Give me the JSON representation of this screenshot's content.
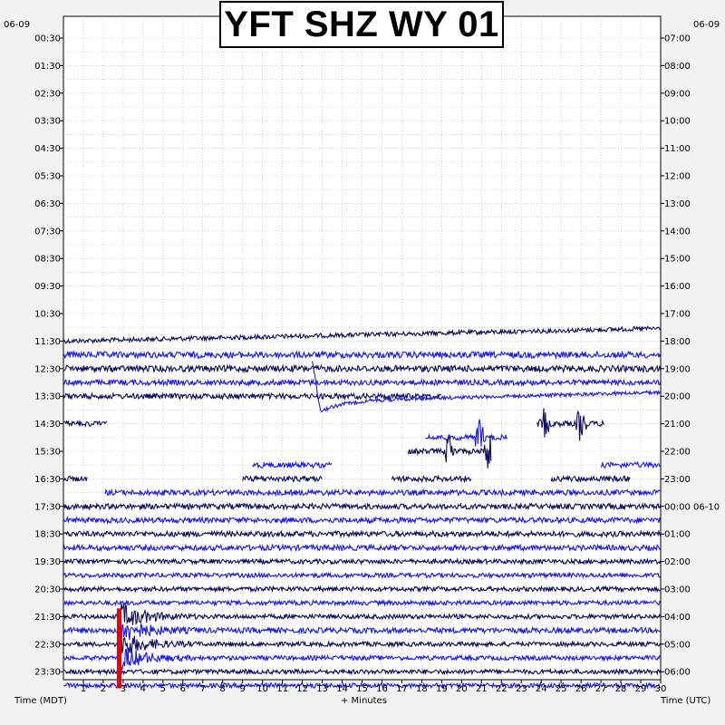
{
  "chart_data": {
    "type": "helicorder",
    "title": "YFT SHZ WY 01",
    "left_date": "06-09",
    "right_date": "06-09",
    "xlabel": "+ Minutes",
    "left_axis_label": "Time (MDT)",
    "right_axis_label": "Time (UTC)",
    "x_ticks": [
      "1",
      "2",
      "3",
      "4",
      "5",
      "6",
      "7",
      "8",
      "9",
      "10",
      "11",
      "12",
      "13",
      "14",
      "15",
      "16",
      "17",
      "18",
      "19",
      "20",
      "21",
      "22",
      "23",
      "24",
      "25",
      "26",
      "27",
      "28",
      "29",
      "30"
    ],
    "xlim": [
      0,
      30
    ],
    "minutes_per_line": 15,
    "left_ticks": [
      "00:30",
      "01:30",
      "02:30",
      "03:30",
      "04:30",
      "05:30",
      "06:30",
      "07:30",
      "08:30",
      "09:30",
      "10:30",
      "11:30",
      "12:30",
      "13:30",
      "14:30",
      "15:30",
      "16:30",
      "17:30",
      "18:30",
      "19:30",
      "20:30",
      "21:30",
      "22:30",
      "23:30"
    ],
    "right_ticks": [
      "07:00",
      "08:00",
      "09:00",
      "10:00",
      "11:00",
      "12:00",
      "13:00",
      "14:00",
      "15:00",
      "16:00",
      "17:00",
      "18:00",
      "19:00",
      "20:00",
      "21:00",
      "22:00",
      "23:00",
      "00:00 06-10",
      "01:00",
      "02:00",
      "03:00",
      "04:00",
      "05:00",
      "06:00"
    ],
    "grid": true,
    "trace_colors": [
      "#0c0c5c",
      "#1a1aee"
    ],
    "event_color": "#ee0000",
    "traces": [
      {
        "line": 22,
        "start": 0,
        "end": 30,
        "amp": 2.5,
        "drift": [
          0,
          -14
        ]
      },
      {
        "line": 23,
        "start": 0,
        "end": 30,
        "amp": 3.5
      },
      {
        "line": 24,
        "start": 0,
        "end": 30,
        "amp": 3.5
      },
      {
        "line": 25,
        "start": 0,
        "end": 30,
        "amp": 3
      },
      {
        "line": 26,
        "start": 0,
        "end": 19,
        "amp": 3
      },
      {
        "line": 27,
        "start": 12.5,
        "end": 30,
        "amp": 2,
        "ramp": true
      },
      {
        "line": 28,
        "start": 0,
        "end": 2.2,
        "amp": 3
      },
      {
        "line": 28,
        "start": 23.8,
        "end": 27.2,
        "amp": 3,
        "bursts": [
          [
            24.2,
            22
          ],
          [
            26,
            25
          ]
        ]
      },
      {
        "line": 29,
        "start": 18.2,
        "end": 22.3,
        "amp": 3,
        "bursts": [
          [
            20.9,
            24
          ]
        ]
      },
      {
        "line": 30,
        "start": 17.3,
        "end": 21.5,
        "amp": 3,
        "bursts": [
          [
            19.4,
            24
          ],
          [
            21.4,
            28
          ]
        ]
      },
      {
        "line": 31,
        "start": 9.5,
        "end": 13.5,
        "amp": 3
      },
      {
        "line": 31,
        "start": 27,
        "end": 30,
        "amp": 3
      },
      {
        "line": 32,
        "start": 0,
        "end": 1.2,
        "amp": 3
      },
      {
        "line": 32,
        "start": 9,
        "end": 13,
        "amp": 3
      },
      {
        "line": 32,
        "start": 16.5,
        "end": 20.5,
        "amp": 3
      },
      {
        "line": 32,
        "start": 24.5,
        "end": 28.5,
        "amp": 3
      },
      {
        "line": 33,
        "start": 2.1,
        "end": 30,
        "amp": 3
      },
      {
        "line": 34,
        "start": 0,
        "end": 30,
        "amp": 3
      },
      {
        "line": 35,
        "start": 0,
        "end": 30,
        "amp": 3
      },
      {
        "line": 36,
        "start": 0,
        "end": 30,
        "amp": 3
      },
      {
        "line": 37,
        "start": 0,
        "end": 30,
        "amp": 3
      },
      {
        "line": 38,
        "start": 0,
        "end": 30,
        "amp": 2.5
      },
      {
        "line": 39,
        "start": 0,
        "end": 30,
        "amp": 2.5
      },
      {
        "line": 40,
        "start": 0,
        "end": 30,
        "amp": 2.5
      },
      {
        "line": 41,
        "start": 0,
        "end": 30,
        "amp": 2.5
      },
      {
        "line": 42,
        "start": 0,
        "end": 30,
        "amp": 2.5,
        "quake": 2.8
      },
      {
        "line": 43,
        "start": 0,
        "end": 30,
        "amp": 3,
        "quake": 2.8
      },
      {
        "line": 44,
        "start": 0,
        "end": 30,
        "amp": 2.5,
        "quake": 2.8
      },
      {
        "line": 45,
        "start": 0,
        "end": 30,
        "amp": 2.5,
        "quake": 2.8
      },
      {
        "line": 46,
        "start": 0,
        "end": 30,
        "amp": 2.5
      },
      {
        "line": 47,
        "start": 0,
        "end": 30,
        "amp": 2.5
      }
    ],
    "event_marker": {
      "minute": 2.8,
      "from_line": 41.4,
      "to_line": 47.2
    }
  }
}
